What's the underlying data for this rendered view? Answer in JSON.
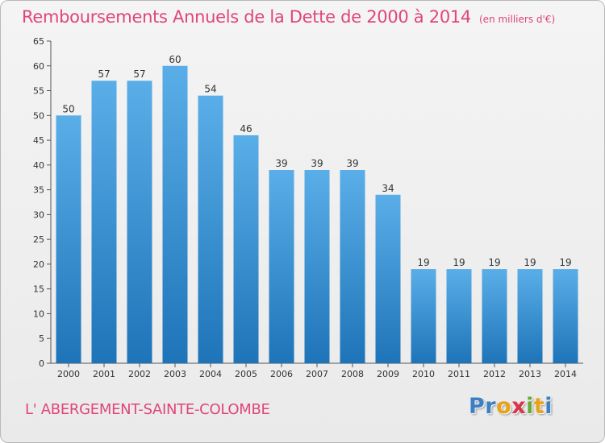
{
  "header": {
    "title": "Remboursements Annuels de la Dette de 2000 à 2014",
    "unit": "(en milliers d'€)"
  },
  "footer": {
    "commune": "L' ABERGEMENT-SAINTE-COLOMBE",
    "logo_letters": [
      "P",
      "r",
      "o",
      "x",
      "i",
      "t",
      "i"
    ],
    "logo_colors": [
      "#3b7fc4",
      "#3b7fc4",
      "#e8a21a",
      "#d8344a",
      "#6aa83a",
      "#e8a21a",
      "#3b7fc4"
    ]
  },
  "colors": {
    "title": "#e0457a",
    "bar_top": "#5aaee8",
    "bar_bottom": "#1e74b8",
    "axis": "#555555",
    "grid": "#d0d0d0"
  },
  "chart_data": {
    "type": "bar",
    "title": "Remboursements Annuels de la Dette de 2000 à 2014",
    "xlabel": "",
    "ylabel": "",
    "categories": [
      "2000",
      "2001",
      "2002",
      "2003",
      "2004",
      "2005",
      "2006",
      "2007",
      "2008",
      "2009",
      "2010",
      "2011",
      "2012",
      "2013",
      "2014"
    ],
    "values": [
      50,
      57,
      57,
      60,
      54,
      46,
      39,
      39,
      39,
      34,
      19,
      19,
      19,
      19,
      19
    ],
    "ylim": [
      0,
      65
    ],
    "yticks": [
      0,
      5,
      10,
      15,
      20,
      25,
      30,
      35,
      40,
      45,
      50,
      55,
      60,
      65
    ],
    "grid": false
  }
}
